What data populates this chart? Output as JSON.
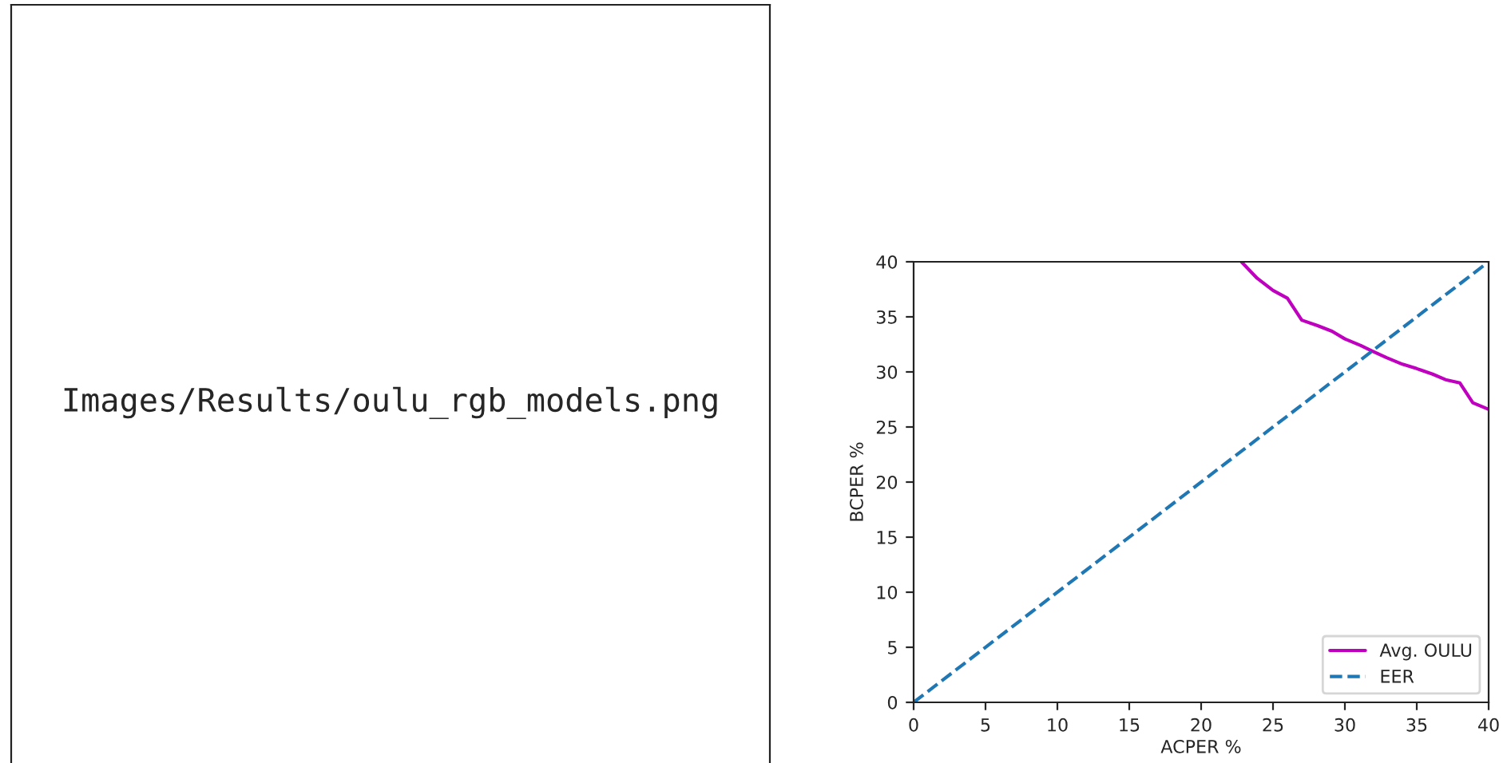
{
  "chart_data": [
    {
      "type": "other",
      "annotations": [
        "Images/Results/oulu_rgb_models.png"
      ]
    },
    {
      "type": "line",
      "xlabel": "ACPER %",
      "ylabel": "BCPER %",
      "xlim": [
        0,
        40
      ],
      "ylim": [
        0,
        40
      ],
      "xticks": [
        0,
        5,
        10,
        15,
        20,
        25,
        30,
        35,
        40
      ],
      "yticks": [
        0,
        5,
        10,
        15,
        20,
        25,
        30,
        35,
        40
      ],
      "grid": false,
      "legend": "bottom right",
      "series": [
        {
          "name": "Avg. OULU",
          "color": "#bf00bf",
          "line_style": "solid",
          "x": [
            22.8,
            23.9,
            25.0,
            26.0,
            27.0,
            28.1,
            29.1,
            30.0,
            31.1,
            31.9,
            32.9,
            34.0,
            35.0,
            36.1,
            37.0,
            38.0,
            38.9,
            40
          ],
          "values": [
            40,
            38.5,
            37.4,
            36.7,
            34.7,
            34.2,
            33.7,
            33.0,
            32.4,
            31.9,
            31.3,
            30.7,
            30.3,
            29.8,
            29.3,
            29.0,
            27.2,
            26.6
          ]
        },
        {
          "name": "EER",
          "color": "#1f77b4",
          "line_style": "dashed",
          "x": [
            0,
            40
          ],
          "values": [
            0,
            40
          ]
        }
      ]
    }
  ]
}
